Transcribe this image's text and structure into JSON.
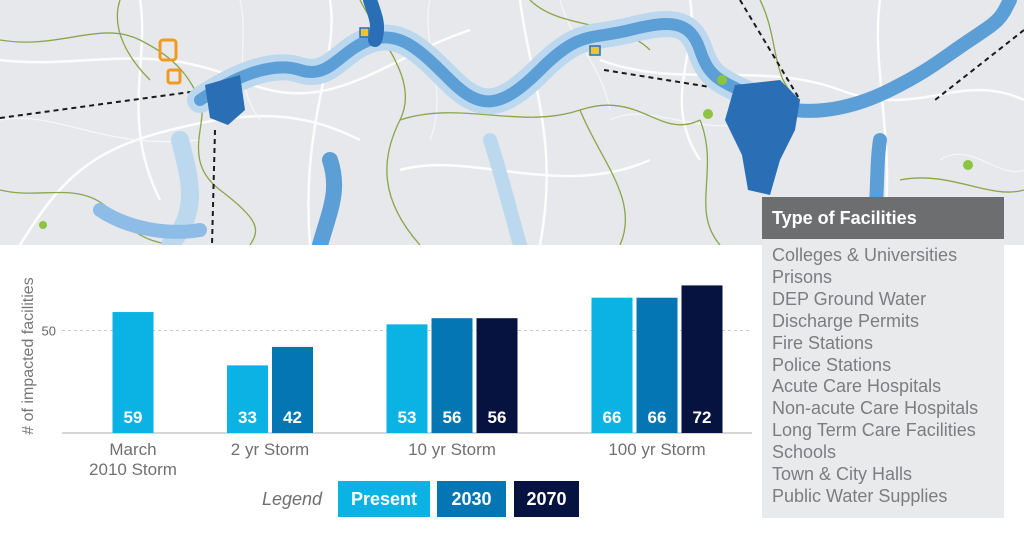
{
  "chart_data": {
    "type": "bar",
    "ylabel": "# of impacted facilities",
    "yticks": [
      50
    ],
    "ylim": [
      0,
      81
    ],
    "grid": "dashed line at 50",
    "categories": [
      "March 2010 Storm",
      "2 yr Storm",
      "10 yr Storm",
      "100 yr Storm"
    ],
    "category_labels": [
      [
        "March",
        "2010 Storm"
      ],
      [
        "2 yr Storm"
      ],
      [
        "10 yr Storm"
      ],
      [
        "100 yr Storm"
      ]
    ],
    "series": [
      {
        "name": "Present",
        "color": "#0ab3e3",
        "values": [
          59,
          33,
          53,
          66
        ]
      },
      {
        "name": "2030",
        "color": "#0576b4",
        "values": [
          null,
          42,
          56,
          66
        ]
      },
      {
        "name": "2070",
        "color": "#06123f",
        "values": [
          null,
          null,
          56,
          72
        ]
      }
    ],
    "data_labels": "value printed inside bottom of each bar"
  },
  "legend": {
    "label": "Legend",
    "items": [
      {
        "label": "Present",
        "color": "#0ab3e3"
      },
      {
        "label": "2030",
        "color": "#0576b4"
      },
      {
        "label": "2070",
        "color": "#06123f"
      }
    ]
  },
  "facilities": {
    "title": "Type of Facilities",
    "items": [
      "Colleges & Universities",
      "Prisons",
      "DEP Ground Water",
      "Discharge Permits",
      "Fire Stations",
      "Police Stations",
      "Acute Care Hospitals",
      "Non-acute Care Hospitals",
      "Long Term Care Facilities",
      "Schools",
      "Town & City Halls",
      "Public Water Supplies"
    ]
  },
  "map": {
    "colors": {
      "background": "#e6e8eb",
      "flood_light": "#bcd8ef",
      "flood_mid": "#5c9fd6",
      "flood_dark": "#2a6fb5",
      "boundary": "#8aa64a",
      "road": "#ffffff",
      "facility_marker": "#8cc43f"
    }
  }
}
